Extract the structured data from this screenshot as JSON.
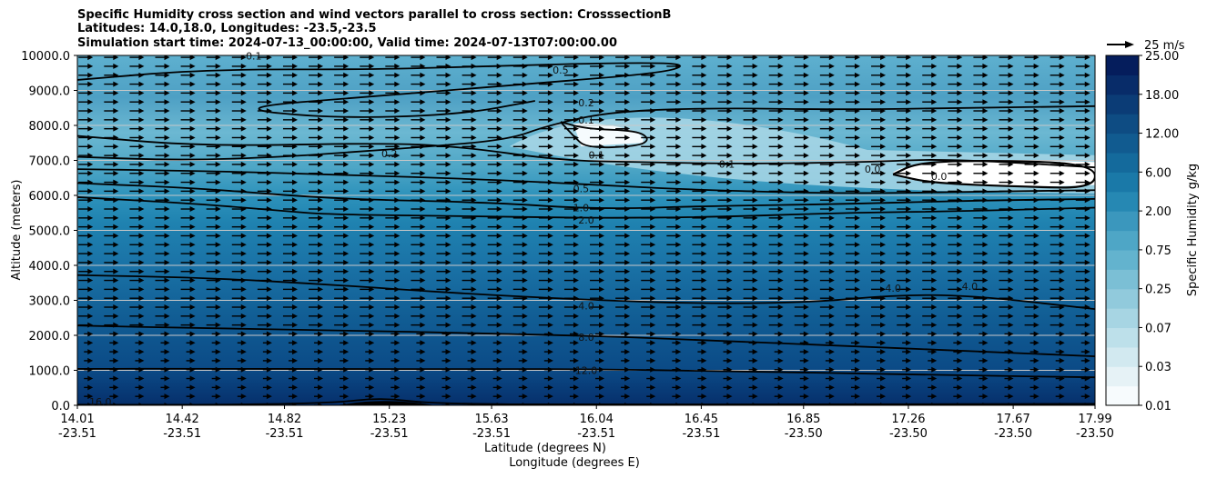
{
  "chart_data": {
    "type": "contour",
    "title_lines": [
      "Specific Humidity cross section and wind vectors parallel to cross section: CrosssectionB",
      "Latitudes: 14.0,18.0, Longitudes: -23.5,-23.5",
      "Simulation start time: 2024-07-13_00:00:00, Valid time: 2024-07-13T07:00:00.00"
    ],
    "ylabel": "Altitude (meters)",
    "xlabel_lines": [
      "Latitude (degrees N)",
      "Longitude (degrees E)"
    ],
    "ylim": [
      0,
      10000
    ],
    "y_ticks": [
      "0.0",
      "1000.0",
      "2000.0",
      "3000.0",
      "4000.0",
      "5000.0",
      "6000.0",
      "7000.0",
      "8000.0",
      "9000.0",
      "10000.0"
    ],
    "x_ticks": [
      {
        "lat": "14.01",
        "lon": "-23.51"
      },
      {
        "lat": "14.42",
        "lon": "-23.51"
      },
      {
        "lat": "14.82",
        "lon": "-23.51"
      },
      {
        "lat": "15.23",
        "lon": "-23.51"
      },
      {
        "lat": "15.63",
        "lon": "-23.51"
      },
      {
        "lat": "16.04",
        "lon": "-23.51"
      },
      {
        "lat": "16.45",
        "lon": "-23.51"
      },
      {
        "lat": "16.85",
        "lon": "-23.50"
      },
      {
        "lat": "17.26",
        "lon": "-23.50"
      },
      {
        "lat": "17.67",
        "lon": "-23.50"
      },
      {
        "lat": "17.99",
        "lon": "-23.50"
      }
    ],
    "grid": "horizontal",
    "colorbar": {
      "label": "Specific Humidity g/kg",
      "ticks": [
        "0.01",
        "0.03",
        "0.07",
        "0.25",
        "0.75",
        "2.00",
        "6.00",
        "12.00",
        "18.00",
        "25.00"
      ],
      "colors": [
        "#f7fbfd",
        "#e6f2f6",
        "#d2e9f0",
        "#bde0ea",
        "#a7d5e3",
        "#91cadc",
        "#7bbfd5",
        "#63b3ce",
        "#4ea6c6",
        "#3b97bd",
        "#2688b3",
        "#1a79a8",
        "#146a9c",
        "#115b90",
        "#0e4c83",
        "#0b3c76",
        "#082c69",
        "#051d5c"
      ]
    },
    "wind_key": "25 m/s",
    "contour_levels": [
      "0.1",
      "0.2",
      "0.5",
      "1.0",
      "2.0",
      "4.0",
      "8.0",
      "12.0",
      "16.0"
    ],
    "contours": [
      {
        "level": "16.0",
        "points": [
          [
            14.01,
            20
          ],
          [
            14.5,
            10
          ],
          [
            15,
            60
          ],
          [
            15.2,
            220
          ],
          [
            15.4,
            40
          ],
          [
            16,
            20
          ],
          [
            17,
            30
          ],
          [
            17.99,
            40
          ]
        ]
      },
      {
        "level": "12.0",
        "points": [
          [
            14.01,
            1040
          ],
          [
            14.5,
            1050
          ],
          [
            15,
            1030
          ],
          [
            15.63,
            1040
          ],
          [
            16.04,
            1030
          ],
          [
            16.5,
            980
          ],
          [
            17,
            920
          ],
          [
            17.5,
            850
          ],
          [
            17.99,
            800
          ]
        ]
      },
      {
        "level": "8.0",
        "points": [
          [
            14.01,
            2280
          ],
          [
            14.5,
            2200
          ],
          [
            15,
            2150
          ],
          [
            15.63,
            2050
          ],
          [
            16.04,
            1980
          ],
          [
            16.5,
            1850
          ],
          [
            17,
            1700
          ],
          [
            17.5,
            1550
          ],
          [
            17.99,
            1400
          ]
        ]
      },
      {
        "level": "4.0",
        "points": [
          [
            14.01,
            3720
          ],
          [
            14.5,
            3650
          ],
          [
            15,
            3450
          ],
          [
            15.5,
            3200
          ],
          [
            16.04,
            3000
          ],
          [
            16.5,
            2900
          ],
          [
            16.9,
            2950
          ],
          [
            17.2,
            3150
          ],
          [
            17.5,
            3150
          ],
          [
            17.99,
            2750
          ]
        ]
      },
      {
        "level": "2.0",
        "points": [
          [
            14.01,
            5950
          ],
          [
            14.5,
            5750
          ],
          [
            14.82,
            5550
          ],
          [
            15,
            5450
          ],
          [
            15.63,
            5400
          ],
          [
            16.04,
            5350
          ],
          [
            16.5,
            5380
          ],
          [
            17,
            5500
          ],
          [
            17.5,
            5550
          ],
          [
            17.99,
            5650
          ]
        ]
      },
      {
        "level": "1.0",
        "points": [
          [
            14.01,
            6350
          ],
          [
            14.5,
            6200
          ],
          [
            15,
            5900
          ],
          [
            15.63,
            5800
          ],
          [
            16.04,
            5600
          ],
          [
            16.5,
            5700
          ],
          [
            17,
            5750
          ],
          [
            17.5,
            5850
          ],
          [
            17.99,
            5900
          ]
        ]
      },
      {
        "level": "0.5",
        "points": [
          [
            14.01,
            6750
          ],
          [
            14.5,
            6700
          ],
          [
            15,
            6600
          ],
          [
            15.63,
            6450
          ],
          [
            16.04,
            6300
          ],
          [
            16.45,
            6150
          ],
          [
            17,
            6050
          ],
          [
            17.5,
            6100
          ],
          [
            17.99,
            6150
          ]
        ]
      },
      {
        "level": "0.2",
        "points": [
          [
            14.01,
            7100
          ],
          [
            14.42,
            7000
          ],
          [
            14.82,
            7100
          ],
          [
            15.1,
            7250
          ],
          [
            15.4,
            7400
          ],
          [
            15.7,
            7600
          ],
          [
            15.85,
            8000
          ],
          [
            16.1,
            8400
          ],
          [
            16.5,
            8500
          ],
          [
            17,
            8450
          ],
          [
            17.5,
            8500
          ],
          [
            17.99,
            8550
          ]
        ]
      },
      {
        "level": "0.1",
        "points": [
          [
            14.01,
            7700
          ],
          [
            14.5,
            7400
          ],
          [
            15.2,
            7500
          ],
          [
            15.5,
            7400
          ],
          [
            15.9,
            7000
          ],
          [
            16.2,
            6950
          ],
          [
            16.6,
            6900
          ],
          [
            17.1,
            6950
          ],
          [
            17.4,
            7050
          ],
          [
            17.99,
            6800
          ]
        ]
      },
      {
        "level": "0.5",
        "points": [
          [
            14.01,
            9300
          ],
          [
            14.5,
            9600
          ],
          [
            15.2,
            9600
          ],
          [
            15.63,
            9700
          ],
          [
            16.2,
            9800
          ],
          [
            16.4,
            9750
          ],
          [
            16.3,
            9500
          ],
          [
            15.8,
            9200
          ],
          [
            15.2,
            8850
          ],
          [
            14.6,
            8500
          ],
          [
            15,
            8200
          ],
          [
            15.5,
            8300
          ],
          [
            15.8,
            8700
          ]
        ]
      },
      {
        "level": "0.1",
        "points": [
          [
            15.9,
            8100
          ],
          [
            16.0,
            7900
          ],
          [
            16.2,
            7850
          ],
          [
            16.25,
            7600
          ],
          [
            16.2,
            7400
          ],
          [
            16.0,
            7350
          ],
          [
            15.95,
            7700
          ],
          [
            15.9,
            8100
          ]
        ]
      },
      {
        "level": "0.0",
        "points": [
          [
            17.2,
            6600
          ],
          [
            17.35,
            6350
          ],
          [
            17.7,
            6250
          ],
          [
            17.99,
            6200
          ],
          [
            17.99,
            6900
          ],
          [
            17.6,
            7000
          ],
          [
            17.3,
            6950
          ],
          [
            17.2,
            6600
          ]
        ]
      }
    ],
    "contour_label_positions": [
      {
        "text": "0.1",
        "lat": 14.7,
        "alt": 9990
      },
      {
        "text": "0.5",
        "lat": 15.9,
        "alt": 9580
      },
      {
        "text": "0.2",
        "lat": 16.0,
        "alt": 8650
      },
      {
        "text": "0.1",
        "lat": 16.0,
        "alt": 8150
      },
      {
        "text": "0.2",
        "lat": 15.23,
        "alt": 7200
      },
      {
        "text": "0.1",
        "lat": 16.04,
        "alt": 7150
      },
      {
        "text": "0.1",
        "lat": 16.55,
        "alt": 6900
      },
      {
        "text": "0.0",
        "lat": 17.12,
        "alt": 6750
      },
      {
        "text": "0.0",
        "lat": 17.38,
        "alt": 6550
      },
      {
        "text": "0.5",
        "lat": 15.98,
        "alt": 6200
      },
      {
        "text": "1.0",
        "lat": 15.98,
        "alt": 5650
      },
      {
        "text": "2.0",
        "lat": 16.0,
        "alt": 5300
      },
      {
        "text": "4.0",
        "lat": 16.0,
        "alt": 2850
      },
      {
        "text": "4.0",
        "lat": 17.2,
        "alt": 3350
      },
      {
        "text": "4.0",
        "lat": 17.5,
        "alt": 3400
      },
      {
        "text": "8.0",
        "lat": 16.0,
        "alt": 1950
      },
      {
        "text": "12.0",
        "lat": 16.0,
        "alt": 1000
      },
      {
        "text": "16.0",
        "lat": 14.1,
        "alt": 100
      }
    ]
  }
}
